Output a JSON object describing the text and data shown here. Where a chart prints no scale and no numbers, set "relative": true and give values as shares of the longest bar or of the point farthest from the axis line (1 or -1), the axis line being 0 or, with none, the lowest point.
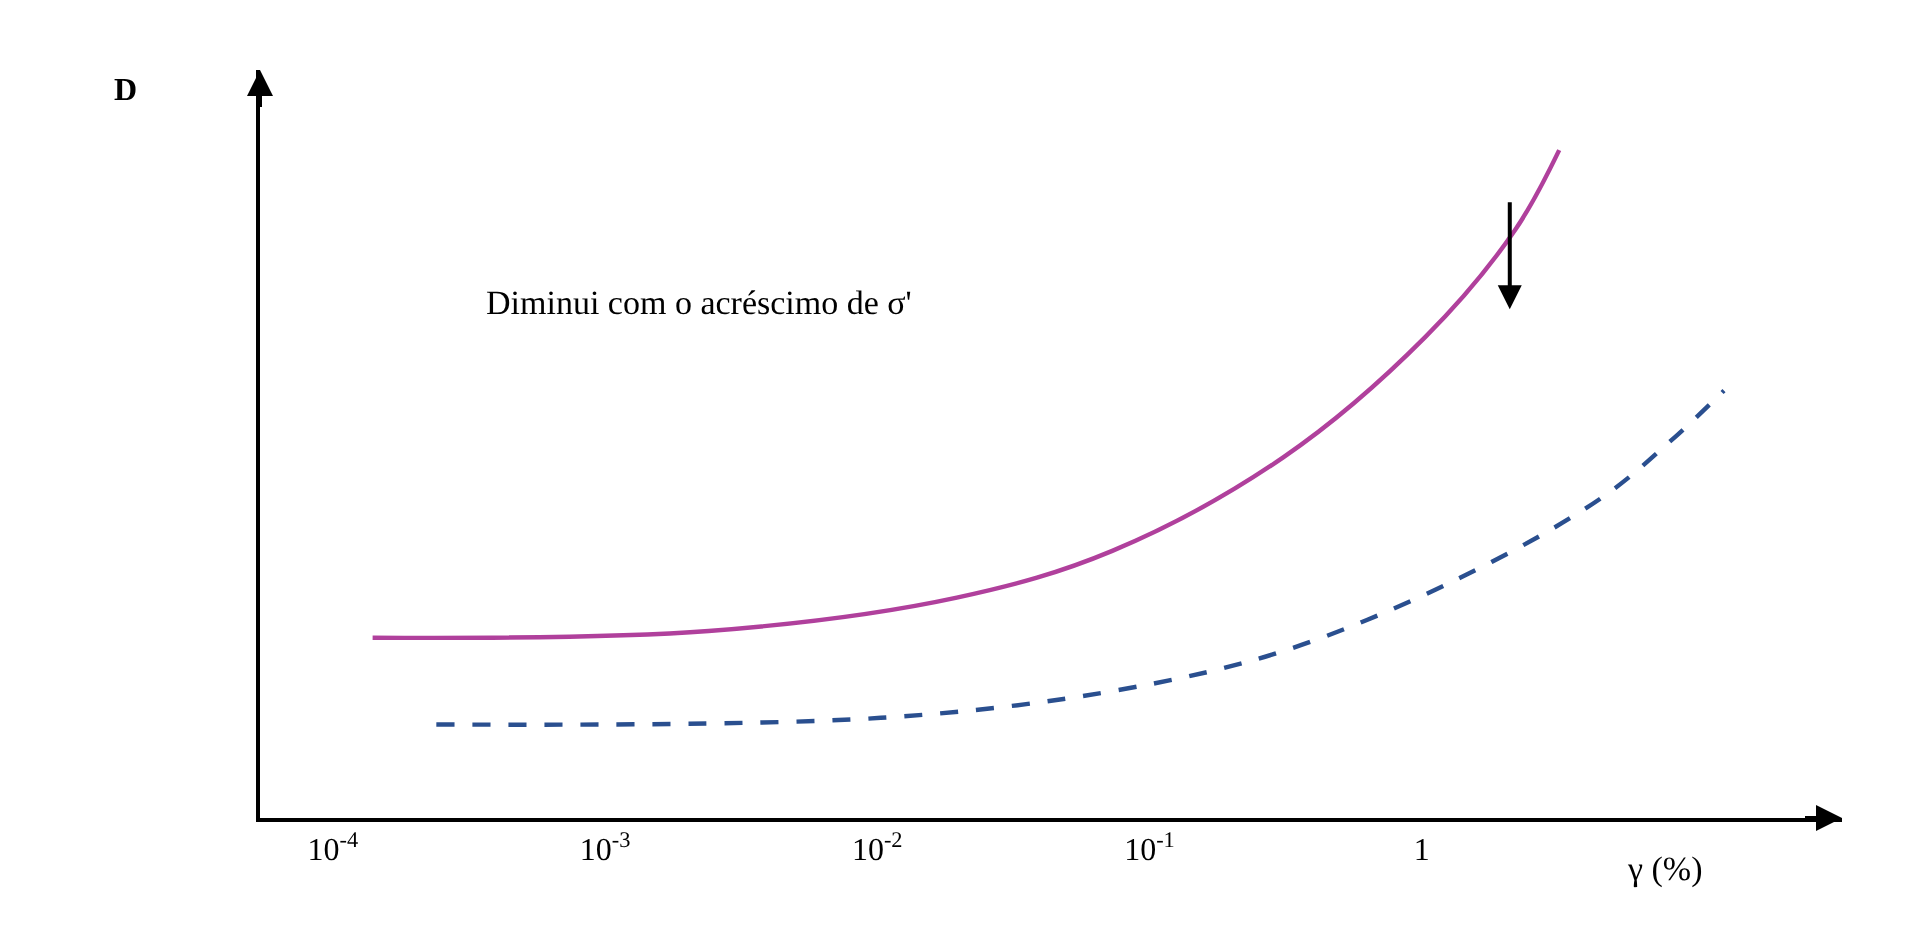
{
  "chart_data": {
    "type": "line",
    "relative": true,
    "xlabel": "γ (%)",
    "ylabel": "D",
    "log": "x",
    "xlim": [
      5.4e-05,
      35
    ],
    "xticks": [
      {
        "value": 0.0001,
        "label": "10$^{-4}$"
      },
      {
        "value": 0.001,
        "label": "10$^{-3}$"
      },
      {
        "value": 0.01,
        "label": "10$^{-2}$"
      },
      {
        "value": 0.1,
        "label": "10$^{-1}$"
      },
      1
    ],
    "annotations": [
      "Diminui com o acréscimo de σ'"
    ],
    "series": [
      {
        "color": "#b0409c",
        "line_style": "solid",
        "x": [
          0.00014,
          0.0024,
          0.0196,
          0.073,
          0.31,
          1.03,
          2.2,
          3.2
        ],
        "values": [
          0.27,
          0.28,
          0.33,
          0.4,
          0.54,
          0.72,
          0.88,
          1.0
        ]
      },
      {
        "color": "#2a4f8f",
        "line_style": "dashed",
        "x": [
          0.00024,
          0.0103,
          0.073,
          0.31,
          1.39,
          4.6,
          8.5,
          12.9
        ],
        "values": [
          0.14,
          0.15,
          0.19,
          0.25,
          0.36,
          0.48,
          0.57,
          0.64
        ]
      }
    ]
  }
}
